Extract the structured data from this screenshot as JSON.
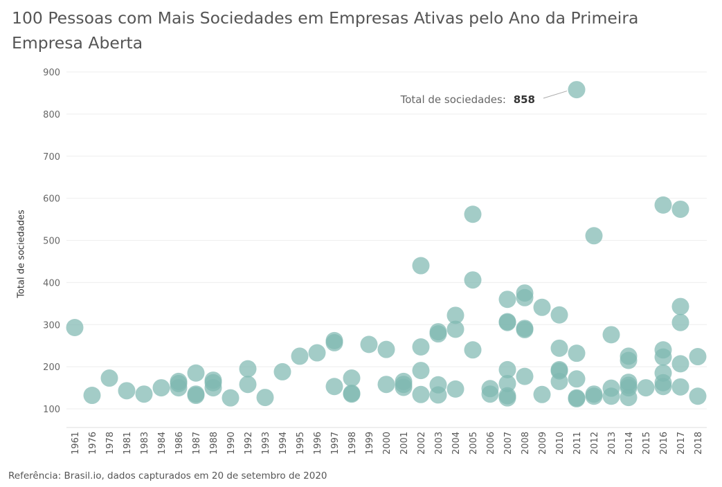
{
  "title": "100 Pessoas com Mais Sociedades em Empresas Ativas pelo Ano da Primeira Empresa Aberta",
  "footer": "Referência: Brasil.io, dados capturados em 20 de setembro de 2020",
  "colors": {
    "point": "#7fb8b2",
    "grid": "#eeeeee",
    "axis": "#dddddd"
  },
  "chart_data": {
    "type": "scatter",
    "ylabel": "Total de sociedades",
    "ylim": [
      60,
      920
    ],
    "yticks": [
      100,
      200,
      300,
      400,
      500,
      600,
      700,
      800,
      900
    ],
    "categories": [
      "1961",
      "1976",
      "1978",
      "1981",
      "1983",
      "1984",
      "1986",
      "1987",
      "1988",
      "1990",
      "1992",
      "1993",
      "1994",
      "1995",
      "1996",
      "1997",
      "1998",
      "1999",
      "2000",
      "2001",
      "2002",
      "2003",
      "2004",
      "2005",
      "2006",
      "2007",
      "2008",
      "2009",
      "2010",
      "2011",
      "2012",
      "2013",
      "2014",
      "2015",
      "2016",
      "2017",
      "2018"
    ],
    "annotation": {
      "label": "Total de sociedades:",
      "value": "858",
      "x": "2011",
      "y": 858
    },
    "points": [
      {
        "x": "1961",
        "y": 293
      },
      {
        "x": "1976",
        "y": 132
      },
      {
        "x": "1978",
        "y": 173
      },
      {
        "x": "1981",
        "y": 143
      },
      {
        "x": "1983",
        "y": 135
      },
      {
        "x": "1984",
        "y": 150
      },
      {
        "x": "1986",
        "y": 165
      },
      {
        "x": "1986",
        "y": 160
      },
      {
        "x": "1986",
        "y": 150
      },
      {
        "x": "1987",
        "y": 185
      },
      {
        "x": "1987",
        "y": 135
      },
      {
        "x": "1987",
        "y": 132
      },
      {
        "x": "1988",
        "y": 168
      },
      {
        "x": "1988",
        "y": 162
      },
      {
        "x": "1988",
        "y": 150
      },
      {
        "x": "1990",
        "y": 126
      },
      {
        "x": "1992",
        "y": 195
      },
      {
        "x": "1992",
        "y": 158
      },
      {
        "x": "1993",
        "y": 127
      },
      {
        "x": "1994",
        "y": 188
      },
      {
        "x": "1995",
        "y": 225
      },
      {
        "x": "1996",
        "y": 233
      },
      {
        "x": "1997",
        "y": 262
      },
      {
        "x": "1997",
        "y": 257
      },
      {
        "x": "1997",
        "y": 153
      },
      {
        "x": "1998",
        "y": 173
      },
      {
        "x": "1998",
        "y": 137
      },
      {
        "x": "1998",
        "y": 135
      },
      {
        "x": "1999",
        "y": 253
      },
      {
        "x": "2000",
        "y": 241
      },
      {
        "x": "2000",
        "y": 158
      },
      {
        "x": "2001",
        "y": 165
      },
      {
        "x": "2001",
        "y": 158
      },
      {
        "x": "2001",
        "y": 151
      },
      {
        "x": "2002",
        "y": 440
      },
      {
        "x": "2002",
        "y": 247
      },
      {
        "x": "2002",
        "y": 191
      },
      {
        "x": "2002",
        "y": 134
      },
      {
        "x": "2003",
        "y": 283
      },
      {
        "x": "2003",
        "y": 278
      },
      {
        "x": "2003",
        "y": 157
      },
      {
        "x": "2003",
        "y": 133
      },
      {
        "x": "2004",
        "y": 322
      },
      {
        "x": "2004",
        "y": 289
      },
      {
        "x": "2004",
        "y": 147
      },
      {
        "x": "2005",
        "y": 562
      },
      {
        "x": "2005",
        "y": 406
      },
      {
        "x": "2005",
        "y": 240
      },
      {
        "x": "2006",
        "y": 148
      },
      {
        "x": "2006",
        "y": 135
      },
      {
        "x": "2007",
        "y": 360
      },
      {
        "x": "2007",
        "y": 307
      },
      {
        "x": "2007",
        "y": 305
      },
      {
        "x": "2007",
        "y": 193
      },
      {
        "x": "2007",
        "y": 160
      },
      {
        "x": "2007",
        "y": 131
      },
      {
        "x": "2007",
        "y": 126
      },
      {
        "x": "2008",
        "y": 375
      },
      {
        "x": "2008",
        "y": 364
      },
      {
        "x": "2008",
        "y": 291
      },
      {
        "x": "2008",
        "y": 288
      },
      {
        "x": "2008",
        "y": 177
      },
      {
        "x": "2009",
        "y": 341
      },
      {
        "x": "2009",
        "y": 134
      },
      {
        "x": "2010",
        "y": 323
      },
      {
        "x": "2010",
        "y": 244
      },
      {
        "x": "2010",
        "y": 193
      },
      {
        "x": "2010",
        "y": 190
      },
      {
        "x": "2010",
        "y": 165
      },
      {
        "x": "2011",
        "y": 858
      },
      {
        "x": "2011",
        "y": 232
      },
      {
        "x": "2011",
        "y": 171
      },
      {
        "x": "2011",
        "y": 126
      },
      {
        "x": "2011",
        "y": 124
      },
      {
        "x": "2012",
        "y": 511
      },
      {
        "x": "2012",
        "y": 135
      },
      {
        "x": "2012",
        "y": 130
      },
      {
        "x": "2013",
        "y": 276
      },
      {
        "x": "2013",
        "y": 149
      },
      {
        "x": "2013",
        "y": 130
      },
      {
        "x": "2014",
        "y": 225
      },
      {
        "x": "2014",
        "y": 215
      },
      {
        "x": "2014",
        "y": 163
      },
      {
        "x": "2014",
        "y": 156
      },
      {
        "x": "2014",
        "y": 150
      },
      {
        "x": "2014",
        "y": 127
      },
      {
        "x": "2015",
        "y": 150
      },
      {
        "x": "2016",
        "y": 584
      },
      {
        "x": "2016",
        "y": 240
      },
      {
        "x": "2016",
        "y": 223
      },
      {
        "x": "2016",
        "y": 185
      },
      {
        "x": "2016",
        "y": 162
      },
      {
        "x": "2016",
        "y": 153
      },
      {
        "x": "2017",
        "y": 574
      },
      {
        "x": "2017",
        "y": 343
      },
      {
        "x": "2017",
        "y": 305
      },
      {
        "x": "2017",
        "y": 207
      },
      {
        "x": "2017",
        "y": 152
      },
      {
        "x": "2018",
        "y": 224
      },
      {
        "x": "2018",
        "y": 130
      }
    ]
  }
}
